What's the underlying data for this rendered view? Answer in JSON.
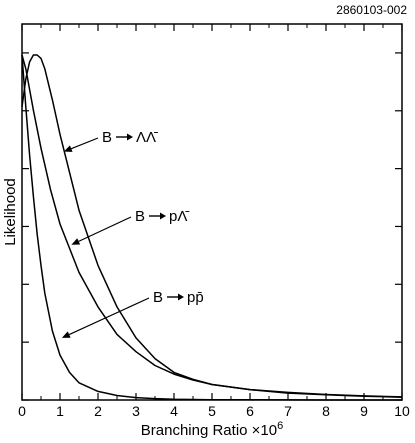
{
  "figure_id": "2860103-002",
  "chart_data": {
    "type": "line",
    "title": "",
    "xlabel": "Branching Ratio ×10",
    "xlabel_exponent": "6",
    "ylabel": "Likelihood",
    "xlim": [
      0,
      10
    ],
    "ylim": [
      0,
      1.0
    ],
    "x_ticks": [
      0,
      1,
      2,
      3,
      4,
      5,
      6,
      7,
      8,
      9,
      10
    ],
    "y_ticks_labeled": false,
    "grid": false,
    "series": [
      {
        "name": "B → ΛΛ̄",
        "x": [
          0,
          0.1,
          0.2,
          0.3,
          0.4,
          0.5,
          0.6,
          0.8,
          1.0,
          1.5,
          2.0,
          2.5,
          3.0,
          3.5,
          4.0,
          4.5,
          5.0,
          6.0,
          7.0,
          8.0,
          9.0,
          10.0
        ],
        "y": [
          0.85,
          0.93,
          0.98,
          1.0,
          1.0,
          0.99,
          0.96,
          0.87,
          0.77,
          0.55,
          0.39,
          0.27,
          0.18,
          0.12,
          0.08,
          0.06,
          0.045,
          0.03,
          0.022,
          0.016,
          0.012,
          0.009
        ]
      },
      {
        "name": "B → pΛ̄",
        "x": [
          0,
          0.1,
          0.2,
          0.3,
          0.5,
          0.75,
          1.0,
          1.5,
          2.0,
          2.5,
          3.0,
          3.5,
          4.0,
          4.5,
          5.0,
          6.0,
          7.0,
          8.0,
          9.0,
          10.0
        ],
        "y": [
          1.0,
          0.96,
          0.9,
          0.84,
          0.73,
          0.61,
          0.51,
          0.37,
          0.27,
          0.19,
          0.14,
          0.1,
          0.075,
          0.058,
          0.045,
          0.03,
          0.02,
          0.015,
          0.011,
          0.008
        ]
      },
      {
        "name": "B → pp̄",
        "x": [
          0,
          0.1,
          0.2,
          0.3,
          0.4,
          0.5,
          0.6,
          0.8,
          1.0,
          1.25,
          1.5,
          2.0,
          2.5,
          3.0,
          3.5,
          4.0,
          5.0,
          6.0,
          8.0,
          10.0
        ],
        "y": [
          1.0,
          0.85,
          0.71,
          0.59,
          0.48,
          0.39,
          0.31,
          0.2,
          0.13,
          0.08,
          0.05,
          0.025,
          0.013,
          0.007,
          0.004,
          0.002,
          0.001,
          0.0005,
          0.0,
          0.0
        ]
      }
    ],
    "annotations": [
      {
        "series": 0,
        "text_main": "B",
        "text_decay": "ΛΛ̄",
        "arrow_to_x": 1.1,
        "arrow_to_y": 0.72
      },
      {
        "series": 1,
        "text_main": "B",
        "text_decay": "pΛ̄",
        "arrow_to_x": 1.3,
        "arrow_to_y": 0.45
      },
      {
        "series": 2,
        "text_main": "B",
        "text_decay": "pp̄",
        "arrow_to_x": 1.05,
        "arrow_to_y": 0.18
      }
    ]
  }
}
